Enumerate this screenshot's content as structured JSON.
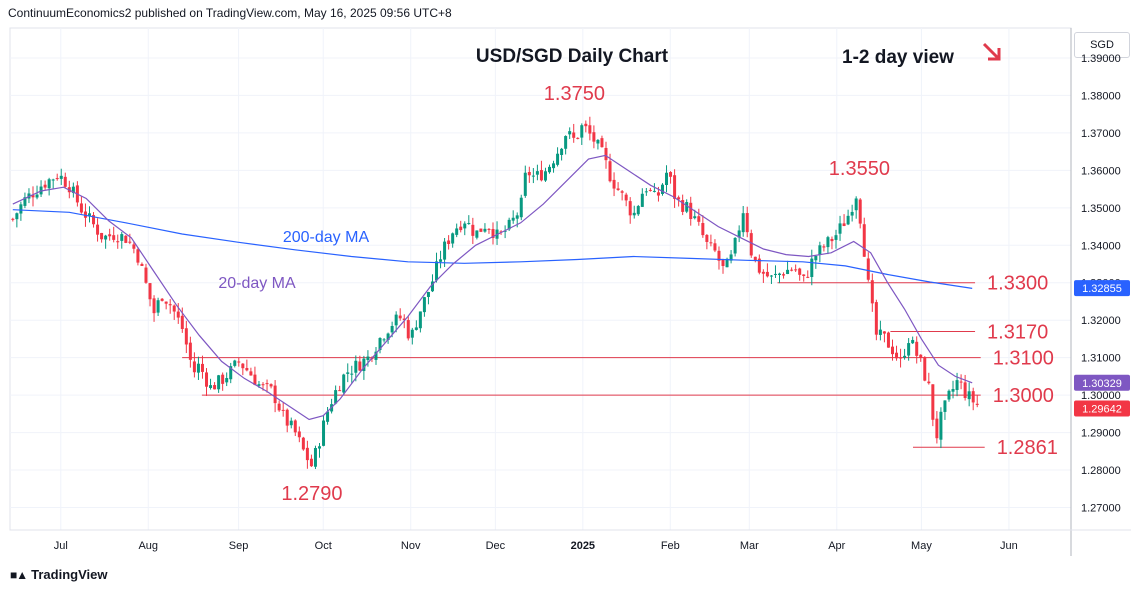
{
  "header": {
    "publisher_line": "ContinuumEconomics2 published on TradingView.com, May 16, 2025 09:56 UTC+8"
  },
  "footer": {
    "brand": "TradingView",
    "logo": "tv-logo-icon"
  },
  "currency": "SGD",
  "chart_data": {
    "type": "candlestick",
    "title": "USD/SGD Daily Chart",
    "subtitle": "1-2 day view",
    "view_direction_icon": "arrow-down-right-icon",
    "ylim": [
      1.264,
      1.398
    ],
    "y_ticks": [
      "1.27000",
      "1.28000",
      "1.29000",
      "1.30000",
      "1.31000",
      "1.32000",
      "1.33000",
      "1.34000",
      "1.35000",
      "1.36000",
      "1.37000",
      "1.38000",
      "1.39000"
    ],
    "x_ticks": [
      {
        "label": "Jul",
        "day": 7,
        "bold": false
      },
      {
        "label": "Aug",
        "day": 38,
        "bold": false
      },
      {
        "label": "Sep",
        "day": 70,
        "bold": false
      },
      {
        "label": "Oct",
        "day": 100,
        "bold": false
      },
      {
        "label": "Nov",
        "day": 131,
        "bold": false
      },
      {
        "label": "Dec",
        "day": 161,
        "bold": false
      },
      {
        "label": "2025",
        "day": 192,
        "bold": true
      },
      {
        "label": "Feb",
        "day": 223,
        "bold": false
      },
      {
        "label": "Mar",
        "day": 251,
        "bold": false
      },
      {
        "label": "Apr",
        "day": 282,
        "bold": false
      },
      {
        "label": "May",
        "day": 312,
        "bold": false
      },
      {
        "label": "Jun",
        "day": 343,
        "bold": false
      }
    ],
    "xlim": [
      -11,
      365
    ],
    "price_path": [
      [
        -10,
        1.347
      ],
      [
        -6,
        1.352
      ],
      [
        0,
        1.356
      ],
      [
        6,
        1.359
      ],
      [
        10,
        1.356
      ],
      [
        14,
        1.35
      ],
      [
        18,
        1.346
      ],
      [
        22,
        1.342
      ],
      [
        26,
        1.343
      ],
      [
        30,
        1.342
      ],
      [
        34,
        1.338
      ],
      [
        37,
        1.33
      ],
      [
        40,
        1.322
      ],
      [
        43,
        1.327
      ],
      [
        46,
        1.324
      ],
      [
        50,
        1.318
      ],
      [
        52,
        1.312
      ],
      [
        54,
        1.306
      ],
      [
        56,
        1.308
      ],
      [
        60,
        1.302
      ],
      [
        64,
        1.304
      ],
      [
        68,
        1.307
      ],
      [
        70,
        1.309
      ],
      [
        74,
        1.306
      ],
      [
        78,
        1.302
      ],
      [
        82,
        1.301
      ],
      [
        86,
        1.294
      ],
      [
        90,
        1.29
      ],
      [
        93,
        1.285
      ],
      [
        96,
        1.281
      ],
      [
        99,
        1.289
      ],
      [
        102,
        1.297
      ],
      [
        105,
        1.302
      ],
      [
        108,
        1.306
      ],
      [
        112,
        1.308
      ],
      [
        116,
        1.31
      ],
      [
        120,
        1.315
      ],
      [
        124,
        1.319
      ],
      [
        128,
        1.321
      ],
      [
        131,
        1.315
      ],
      [
        134,
        1.322
      ],
      [
        138,
        1.329
      ],
      [
        142,
        1.338
      ],
      [
        146,
        1.344
      ],
      [
        150,
        1.347
      ],
      [
        154,
        1.343
      ],
      [
        158,
        1.346
      ],
      [
        162,
        1.342
      ],
      [
        166,
        1.345
      ],
      [
        170,
        1.35
      ],
      [
        172,
        1.36
      ],
      [
        175,
        1.358
      ],
      [
        179,
        1.36
      ],
      [
        183,
        1.365
      ],
      [
        186,
        1.37
      ],
      [
        189,
        1.368
      ],
      [
        192,
        1.372
      ],
      [
        196,
        1.368
      ],
      [
        199,
        1.364
      ],
      [
        202,
        1.358
      ],
      [
        206,
        1.353
      ],
      [
        210,
        1.348
      ],
      [
        214,
        1.356
      ],
      [
        218,
        1.352
      ],
      [
        222,
        1.36
      ],
      [
        225,
        1.352
      ],
      [
        229,
        1.35
      ],
      [
        233,
        1.345
      ],
      [
        236,
        1.34
      ],
      [
        239,
        1.338
      ],
      [
        242,
        1.333
      ],
      [
        245,
        1.337
      ],
      [
        249,
        1.35
      ],
      [
        252,
        1.337
      ],
      [
        255,
        1.333
      ],
      [
        259,
        1.331
      ],
      [
        263,
        1.333
      ],
      [
        267,
        1.334
      ],
      [
        270,
        1.33
      ],
      [
        274,
        1.337
      ],
      [
        278,
        1.34
      ],
      [
        282,
        1.343
      ],
      [
        286,
        1.348
      ],
      [
        289,
        1.354
      ],
      [
        291,
        1.344
      ],
      [
        293,
        1.33
      ],
      [
        296,
        1.316
      ],
      [
        299,
        1.315
      ],
      [
        302,
        1.312
      ],
      [
        305,
        1.308
      ],
      [
        307,
        1.316
      ],
      [
        309,
        1.313
      ],
      [
        312,
        1.308
      ],
      [
        315,
        1.301
      ],
      [
        317,
        1.288
      ],
      [
        319,
        1.294
      ],
      [
        322,
        1.3
      ],
      [
        325,
        1.304
      ],
      [
        328,
        1.3
      ],
      [
        331,
        1.298
      ],
      [
        333,
        1.2964
      ]
    ],
    "series": [
      {
        "name": "200-day MA",
        "color": "#2962ff",
        "points": [
          [
            -10,
            1.3495
          ],
          [
            10,
            1.3488
          ],
          [
            30,
            1.346
          ],
          [
            50,
            1.343
          ],
          [
            70,
            1.3408
          ],
          [
            90,
            1.3388
          ],
          [
            110,
            1.337
          ],
          [
            130,
            1.3356
          ],
          [
            150,
            1.3352
          ],
          [
            170,
            1.3356
          ],
          [
            190,
            1.3362
          ],
          [
            210,
            1.337
          ],
          [
            230,
            1.3365
          ],
          [
            250,
            1.336
          ],
          [
            270,
            1.3356
          ],
          [
            285,
            1.3345
          ],
          [
            300,
            1.3322
          ],
          [
            315,
            1.3302
          ],
          [
            330,
            1.3285
          ]
        ]
      },
      {
        "name": "20-day MA",
        "color": "#7e57c2",
        "points": [
          [
            -10,
            1.351
          ],
          [
            0,
            1.3545
          ],
          [
            8,
            1.3555
          ],
          [
            16,
            1.3525
          ],
          [
            24,
            1.3465
          ],
          [
            32,
            1.342
          ],
          [
            40,
            1.333
          ],
          [
            48,
            1.324
          ],
          [
            56,
            1.316
          ],
          [
            64,
            1.309
          ],
          [
            72,
            1.3045
          ],
          [
            80,
            1.301
          ],
          [
            88,
            1.297
          ],
          [
            95,
            1.2935
          ],
          [
            100,
            1.2945
          ],
          [
            106,
            1.299
          ],
          [
            114,
            1.307
          ],
          [
            122,
            1.314
          ],
          [
            130,
            1.321
          ],
          [
            138,
            1.329
          ],
          [
            146,
            1.335
          ],
          [
            154,
            1.34
          ],
          [
            162,
            1.343
          ],
          [
            170,
            1.346
          ],
          [
            178,
            1.351
          ],
          [
            186,
            1.357
          ],
          [
            194,
            1.363
          ],
          [
            200,
            1.364
          ],
          [
            208,
            1.36
          ],
          [
            216,
            1.356
          ],
          [
            224,
            1.353
          ],
          [
            232,
            1.349
          ],
          [
            240,
            1.345
          ],
          [
            248,
            1.342
          ],
          [
            256,
            1.339
          ],
          [
            264,
            1.3375
          ],
          [
            272,
            1.337
          ],
          [
            280,
            1.338
          ],
          [
            288,
            1.341
          ],
          [
            294,
            1.338
          ],
          [
            300,
            1.33
          ],
          [
            306,
            1.323
          ],
          [
            312,
            1.315
          ],
          [
            318,
            1.308
          ],
          [
            324,
            1.305
          ],
          [
            330,
            1.3033
          ]
        ]
      }
    ],
    "levels": [
      {
        "value": 1.3,
        "label": "1.3000",
        "from_day": 57
      },
      {
        "value": 1.31,
        "label": "1.3100",
        "from_day": 50
      },
      {
        "value": 1.317,
        "label": "1.3170",
        "from_day": 301
      },
      {
        "value": 1.33,
        "label": "1.3300",
        "from_day": 261
      },
      {
        "value": 1.2861,
        "label": "1.2861",
        "from_day": 309
      }
    ],
    "annotations": [
      {
        "label": "1.3750",
        "value": 1.375,
        "day": 189
      },
      {
        "label": "1.2790",
        "value": 1.279,
        "day": 96
      },
      {
        "label": "1.3550",
        "value": 1.355,
        "day": 290
      }
    ],
    "price_labels": [
      {
        "text": "1.32855",
        "value": 1.32855,
        "color": "#2962ff"
      },
      {
        "text": "1.30329",
        "value": 1.30329,
        "color": "#7e57c2"
      },
      {
        "text": "1.29642",
        "value": 1.29642,
        "color": "#f23645"
      }
    ],
    "colors": {
      "up": "#089981",
      "down": "#f23645",
      "level": "#e03a4c",
      "annotation": "#e03a4c"
    }
  }
}
